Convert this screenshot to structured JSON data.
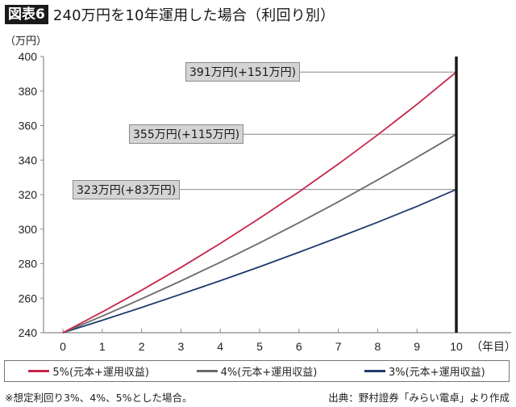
{
  "header": {
    "badge": "図表6",
    "title": "240万円を10年運用した場合（利回り別）"
  },
  "axis": {
    "y_unit": "（万円）",
    "x_unit": "（年目）"
  },
  "annotations": [
    {
      "text": "391万円(+151万円)",
      "value": 391
    },
    {
      "text": "355万円(+115万円)",
      "value": 355
    },
    {
      "text": "323万円(+83万円)",
      "value": 323
    }
  ],
  "legend": [
    {
      "label": "5%(元本+運用収益)",
      "color": "#c8254a"
    },
    {
      "label": "4%(元本+運用収益)",
      "color": "#6b6b6b"
    },
    {
      "label": "3%(元本+運用収益)",
      "color": "#1f3a6e"
    }
  ],
  "footnote": "※想定利回り3%、4%、5%とした場合。",
  "source": "出典：野村證券「みらい電卓」より作成",
  "colors": {
    "series_5": "#c8254a",
    "series_4": "#6b6b6b",
    "series_3": "#1f3a6e",
    "annotation_bg": "#d4d4d4",
    "axis": "#888888",
    "marker_line": "#1a1a1a"
  },
  "chart_data": {
    "type": "line",
    "title": "240万円を10年運用した場合（利回り別）",
    "xlabel": "（年目）",
    "ylabel": "（万円）",
    "x": [
      0,
      1,
      2,
      3,
      4,
      5,
      6,
      7,
      8,
      9,
      10
    ],
    "ylim": [
      240,
      400
    ],
    "yticks": [
      240,
      260,
      280,
      300,
      320,
      340,
      360,
      380,
      400
    ],
    "grid": false,
    "legend_position": "bottom",
    "series": [
      {
        "name": "5%(元本+運用収益)",
        "color": "#c8254a",
        "values": [
          240,
          252,
          264.6,
          277.8,
          291.7,
          306.3,
          321.6,
          337.7,
          354.6,
          372.3,
          391
        ]
      },
      {
        "name": "4%(元本+運用収益)",
        "color": "#6b6b6b",
        "values": [
          240,
          249.6,
          259.6,
          270.0,
          280.8,
          292.0,
          303.7,
          315.8,
          328.5,
          341.6,
          355
        ]
      },
      {
        "name": "3%(元本+運用収益)",
        "color": "#1f3a6e",
        "values": [
          240,
          247.2,
          254.6,
          262.3,
          270.1,
          278.2,
          286.6,
          295.2,
          304.0,
          313.2,
          323
        ]
      }
    ],
    "annotations": [
      {
        "x": 10,
        "y": 391,
        "text": "391万円(+151万円)"
      },
      {
        "x": 10,
        "y": 355,
        "text": "355万円(+115万円)"
      },
      {
        "x": 10,
        "y": 323,
        "text": "323万円(+83万円)"
      }
    ],
    "vertical_marker_x": 10
  }
}
